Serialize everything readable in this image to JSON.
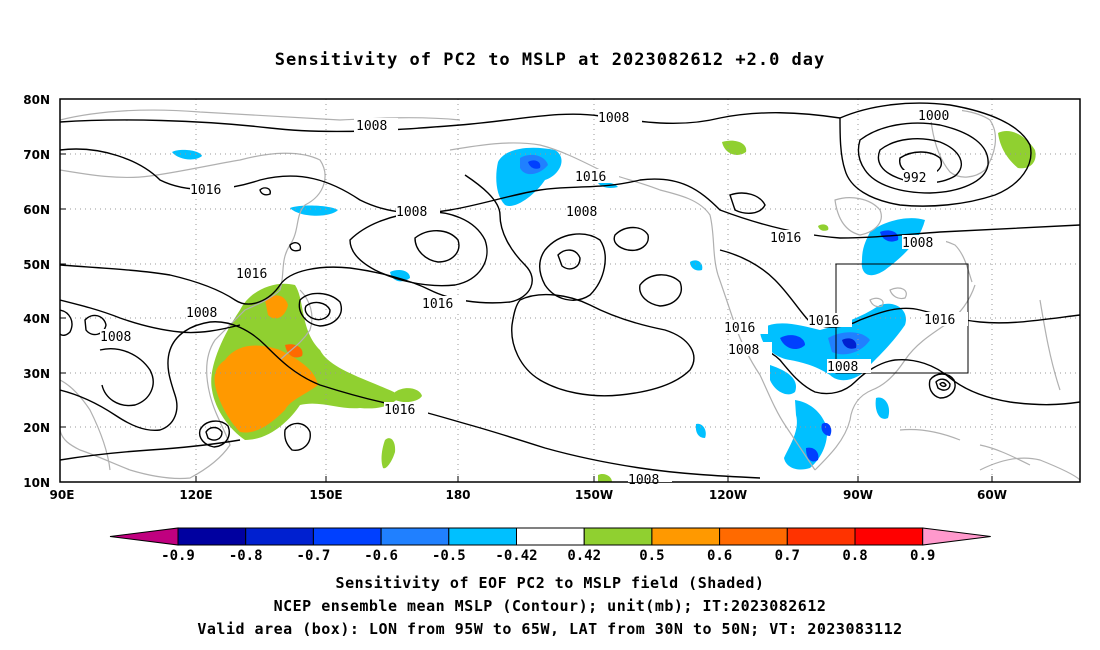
{
  "title": "Sensitivity of PC2 to MSLP at 2023082612 +2.0 day",
  "y_ticks": [
    "80N",
    "70N",
    "60N",
    "50N",
    "40N",
    "30N",
    "20N",
    "10N"
  ],
  "x_ticks": [
    "90E",
    "120E",
    "150E",
    "180",
    "150W",
    "120W",
    "90W",
    "60W"
  ],
  "contour_labels": [
    "1008",
    "1016",
    "1008",
    "1016",
    "1008",
    "1016",
    "1008",
    "1016",
    "1008",
    "1016",
    "1008",
    "1016",
    "1008",
    "1000",
    "992",
    "1008",
    "1016",
    "1016",
    "1016",
    "1008",
    "1008"
  ],
  "colorbar": {
    "labels": [
      "-0.9",
      "-0.8",
      "-0.7",
      "-0.6",
      "-0.5",
      "-0.42",
      "0.42",
      "0.5",
      "0.6",
      "0.7",
      "0.8",
      "0.9"
    ],
    "colors": [
      "#c0007f",
      "#0000a0",
      "#0020d0",
      "#0040ff",
      "#2080ff",
      "#00c0ff",
      "#ffffff",
      "#90d030",
      "#ff9900",
      "#ff6a00",
      "#ff3300",
      "#ff0000",
      "#ff99cc"
    ]
  },
  "colors": {
    "land_outline": "#b0b0b0",
    "contour": "#000000",
    "grid": "#999999"
  },
  "captions": [
    "Sensitivity of EOF PC2 to MSLP field (Shaded)",
    "NCEP ensemble mean MSLP (Contour); unit(mb); IT:2023082612",
    "Valid area (box): LON from 95W to 65W, LAT from 30N to 50N; VT: 2023083112"
  ]
}
